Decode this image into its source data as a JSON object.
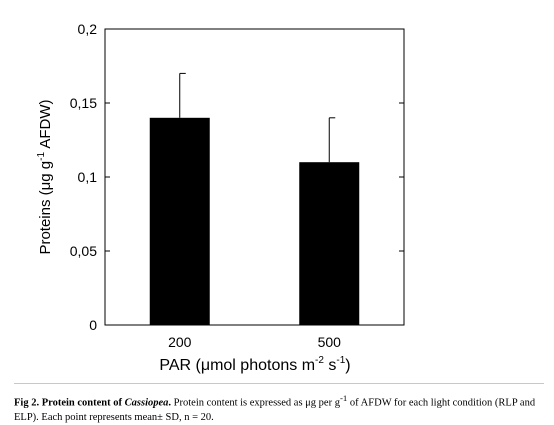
{
  "chart_data": {
    "type": "bar",
    "categories": [
      "200",
      "500"
    ],
    "values": [
      0.14,
      0.11
    ],
    "errors": [
      0.03,
      0.03
    ],
    "ylim": [
      0,
      0.2
    ],
    "yticks": [
      0,
      0.05,
      0.1,
      0.15,
      0.2
    ],
    "ytick_labels": [
      "0",
      "0,05",
      "0,1",
      "0,15",
      "0,2"
    ],
    "ylabel": {
      "main": "Proteins (μg g",
      "sup": "-1",
      "tail": " AFDW)"
    },
    "xlabel": {
      "part1": "PAR  (μmol photons m",
      "sup1": "-2",
      "part2": " s",
      "sup2": "-1",
      "part3": ")"
    },
    "bar_color": "#000000",
    "grid": false
  },
  "caption": {
    "fig_label": "Fig 2.",
    "title_prefix": "Protein content of ",
    "title_italic": "Cassiopea",
    "title_end": ".",
    "text1": " Protein content is expressed as μg per g",
    "sup": "-1",
    "text2": " of AFDW for each light condition (RLP and ELP). Each point represents mean± SD, n = 20."
  }
}
